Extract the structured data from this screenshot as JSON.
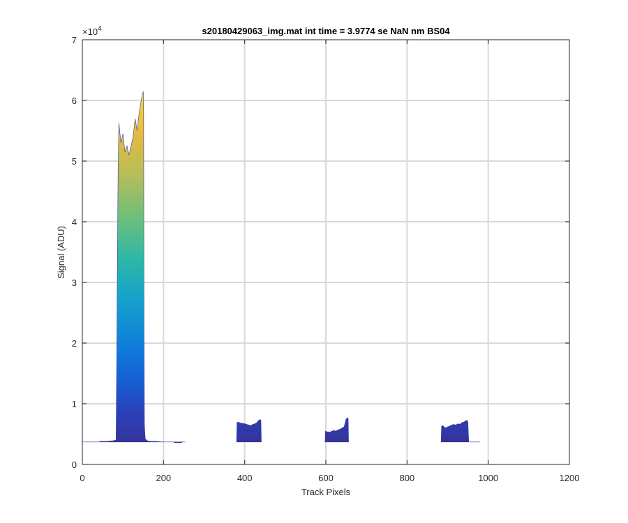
{
  "chart_data": {
    "type": "area",
    "title": "s20180429063_img.mat int time = 3.9774 se  NaN nm BS04",
    "xlabel": "Track Pixels",
    "ylabel": "Signal (ADU)",
    "xlim": [
      0,
      1200
    ],
    "ylim": [
      0,
      70000
    ],
    "x_ticks": [
      0,
      200,
      400,
      600,
      800,
      1000,
      1200
    ],
    "x_tick_labels": [
      "0",
      "200",
      "400",
      "600",
      "800",
      "1000",
      "1200"
    ],
    "y_ticks": [
      0,
      10000,
      20000,
      30000,
      40000,
      50000,
      60000,
      70000
    ],
    "y_tick_labels": [
      "0",
      "1",
      "2",
      "3",
      "4",
      "5",
      "6",
      "7"
    ],
    "y_exponent_label": "×10",
    "y_exponent_power": "4",
    "grid": true,
    "colormap": "parula",
    "baseline": 3700,
    "series": [
      {
        "x": [
          0,
          20,
          40,
          45,
          60,
          75,
          83,
          85,
          86,
          88,
          90,
          92,
          95,
          100,
          105,
          110,
          115,
          120,
          125,
          130,
          135,
          140,
          145,
          150,
          151,
          152,
          153,
          155,
          160,
          170,
          180,
          190,
          200,
          210,
          220,
          225,
          226,
          245,
          246,
          250,
          252,
          253
        ],
        "values": [
          3700,
          3700,
          3700,
          3800,
          3800,
          3900,
          4000,
          18500,
          30000,
          48000,
          56300,
          55000,
          53000,
          54500,
          51500,
          52500,
          51000,
          52500,
          54000,
          57000,
          55000,
          58000,
          60000,
          61500,
          58000,
          22500,
          6500,
          4200,
          3900,
          3800,
          3800,
          3750,
          3700,
          3700,
          3700,
          3700,
          3600,
          3600,
          3700,
          3700,
          3700,
          3700
        ]
      },
      {
        "x": [
          380,
          381,
          383,
          390,
          400,
          410,
          415,
          420,
          425,
          430,
          435,
          438,
          440,
          441
        ],
        "values": [
          3700,
          6900,
          7000,
          6800,
          6700,
          6500,
          6400,
          6600,
          6700,
          6900,
          7300,
          7400,
          7300,
          3700
        ]
      },
      {
        "x": [
          598,
          599,
          602,
          610,
          615,
          620,
          625,
          630,
          635,
          640,
          645,
          650,
          653,
          655,
          656
        ],
        "values": [
          3700,
          5500,
          5400,
          5300,
          5500,
          5600,
          5500,
          5700,
          5800,
          6000,
          6200,
          7500,
          7700,
          7600,
          3700
        ]
      },
      {
        "x": [
          884,
          885,
          888,
          895,
          900,
          905,
          910,
          915,
          920,
          925,
          930,
          935,
          940,
          945,
          948,
          950,
          952,
          980
        ],
        "values": [
          3700,
          6300,
          6400,
          6000,
          6200,
          6300,
          6500,
          6600,
          6500,
          6700,
          6600,
          6900,
          7000,
          7200,
          7300,
          6900,
          3700,
          3700
        ]
      }
    ]
  }
}
